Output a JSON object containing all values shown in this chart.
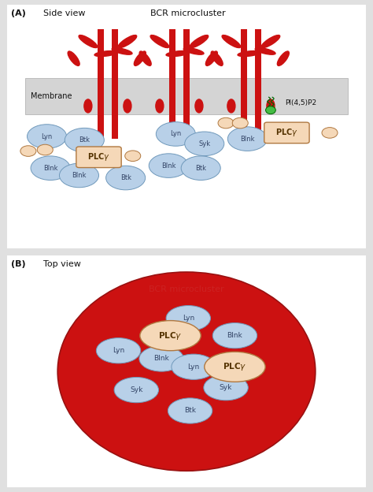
{
  "fig_width": 4.74,
  "fig_height": 6.24,
  "bg_color": "#e0e0e0",
  "panel_bg": "#ffffff",
  "membrane_color": "#d4d4d4",
  "red_color": "#cc1111",
  "blue_circle_color": "#b8d0e8",
  "blue_circle_edge": "#7099bb",
  "plcy_color": "#f5d8b8",
  "plcy_edge": "#b07840",
  "small_circle_color": "#f5d8b8",
  "green_color": "#44bb44",
  "text_color": "#111111",
  "panel_A_label": "(A)",
  "panel_A_title1": "Side view",
  "panel_A_title2": "BCR microcluster",
  "panel_B_label": "(B)",
  "panel_B_title": "Top view",
  "membrane_label": "Membrane",
  "pi_label": "PI(4,5)P2"
}
